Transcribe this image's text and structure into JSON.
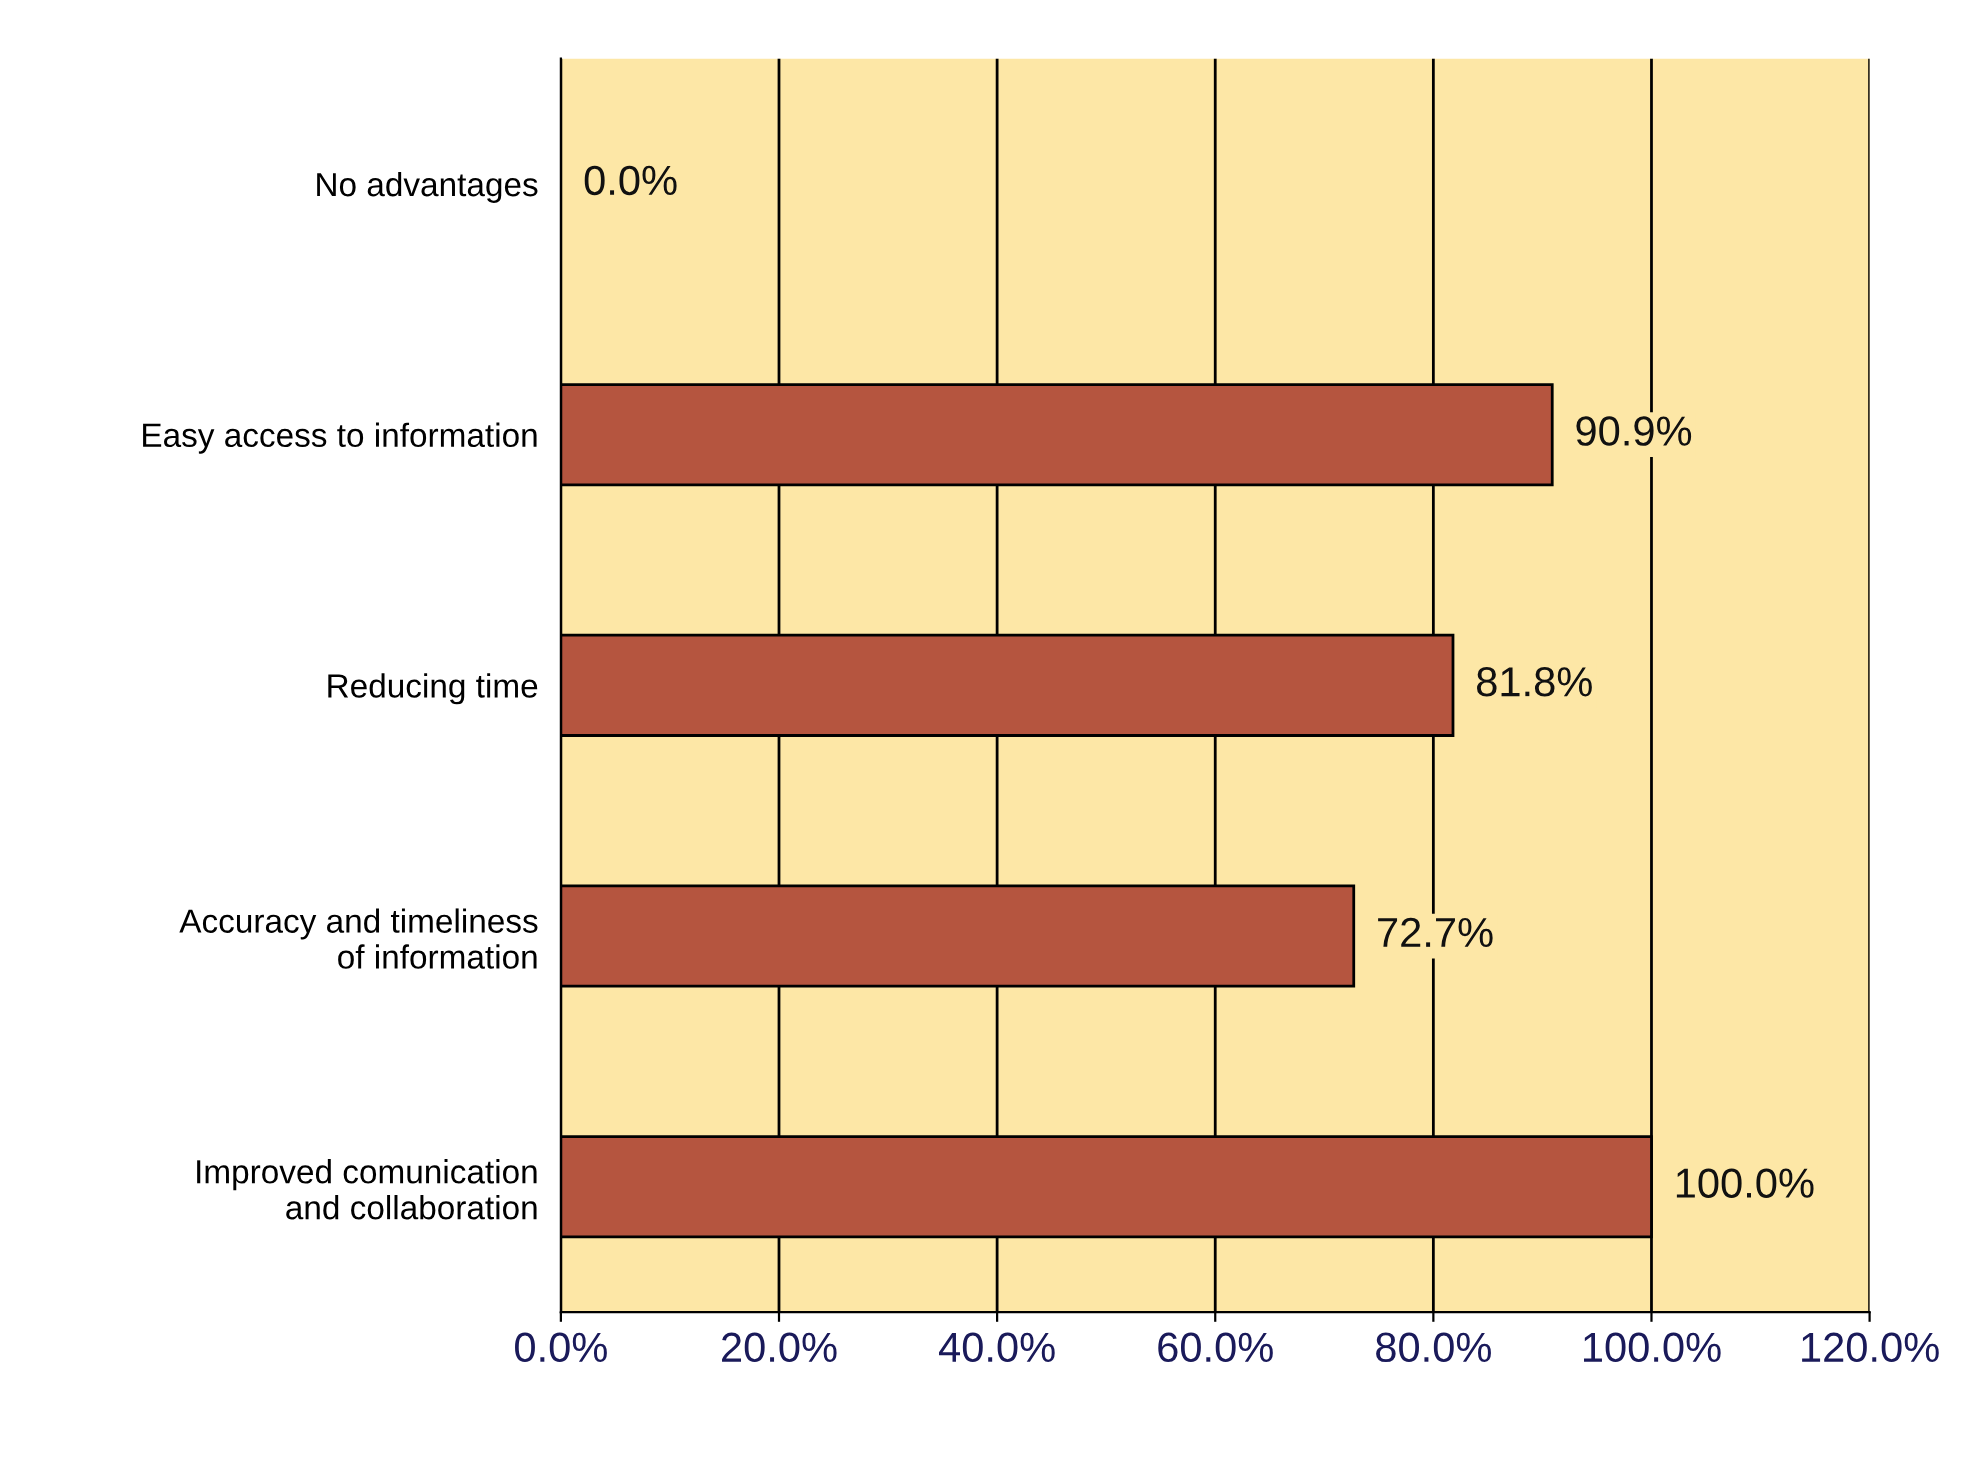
{
  "chart_data": {
    "type": "bar",
    "orientation": "horizontal",
    "categories": [
      "No advantages",
      "Easy access to information",
      "Reducing time",
      "Accuracy and timeliness\nof information",
      "Improved comunication\nand collaboration"
    ],
    "values": [
      0.0,
      90.9,
      81.8,
      72.7,
      100.0
    ],
    "value_labels": [
      "0.0%",
      "90.9%",
      "81.8%",
      "72.7%",
      "100.0%"
    ],
    "color": "#b5553f",
    "xlim": [
      0,
      120
    ],
    "xticks": [
      {
        "value": 0,
        "label": "0.0%"
      },
      {
        "value": 20,
        "label": "20.0%"
      },
      {
        "value": 40,
        "label": "40.0%"
      },
      {
        "value": 60,
        "label": "60.0%"
      },
      {
        "value": 80,
        "label": "80.0%"
      },
      {
        "value": 100,
        "label": "100.0%"
      },
      {
        "value": 120,
        "label": "120.0%"
      }
    ],
    "grid": "x",
    "legend": false
  }
}
